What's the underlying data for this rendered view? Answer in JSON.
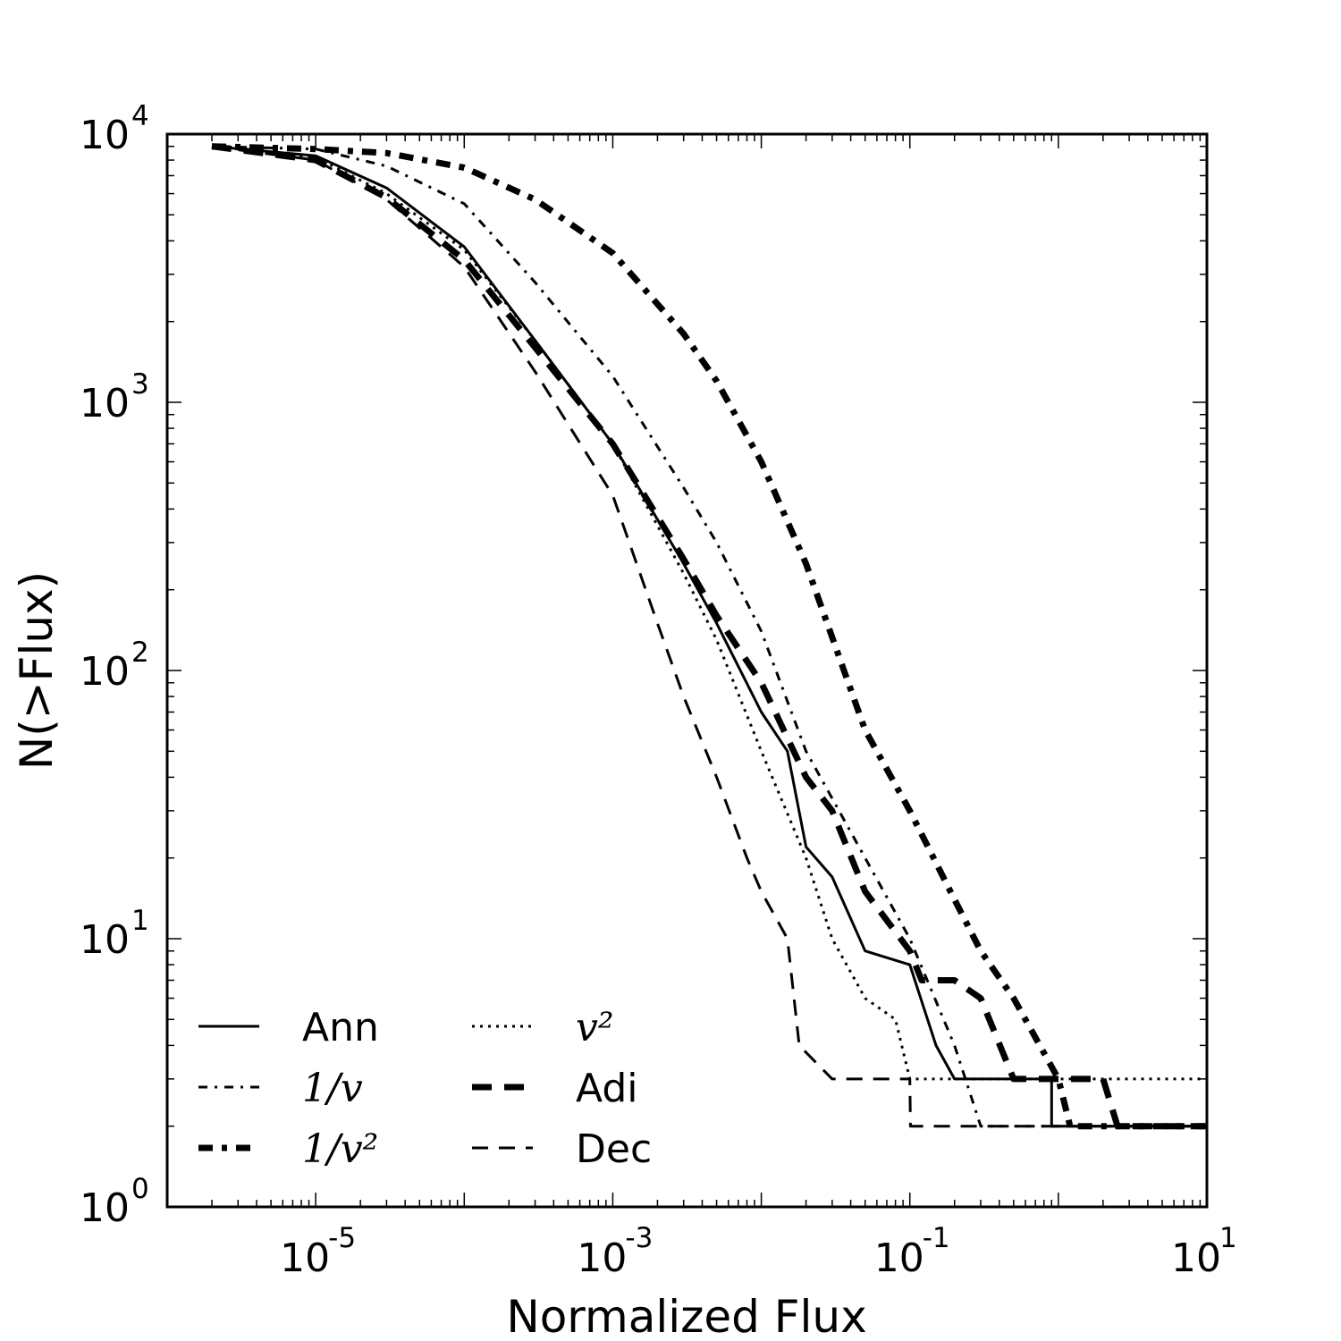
{
  "chart_data": {
    "type": "line",
    "xlabel": "Normalized Flux",
    "ylabel": "N(>Flux)",
    "xscale": "log",
    "yscale": "log",
    "xlim": [
      1e-06,
      10
    ],
    "ylim": [
      1,
      10000
    ],
    "grid": false,
    "legend_placement": "lower-left",
    "x_ticks": [
      {
        "base": "10",
        "exp": "-5",
        "value": 1e-05
      },
      {
        "base": "10",
        "exp": "-3",
        "value": 0.001
      },
      {
        "base": "10",
        "exp": "-1",
        "value": 0.1
      },
      {
        "base": "10",
        "exp": "1",
        "value": 10
      }
    ],
    "y_ticks": [
      {
        "base": "10",
        "exp": "0",
        "value": 1
      },
      {
        "base": "10",
        "exp": "1",
        "value": 10
      },
      {
        "base": "10",
        "exp": "2",
        "value": 100
      },
      {
        "base": "10",
        "exp": "3",
        "value": 1000
      },
      {
        "base": "10",
        "exp": "4",
        "value": 10000
      }
    ],
    "series": [
      {
        "name": "Ann",
        "style": "solid",
        "weight": "thin",
        "color": "#000000",
        "points": [
          [
            2e-06,
            9000
          ],
          [
            1e-05,
            8300
          ],
          [
            3e-05,
            6300
          ],
          [
            0.0001,
            3800
          ],
          [
            0.0003,
            1700
          ],
          [
            0.001,
            700
          ],
          [
            0.003,
            250
          ],
          [
            0.005,
            150
          ],
          [
            0.01,
            70
          ],
          [
            0.015,
            50
          ],
          [
            0.02,
            22
          ],
          [
            0.03,
            17
          ],
          [
            0.05,
            9
          ],
          [
            0.1,
            8
          ],
          [
            0.15,
            4
          ],
          [
            0.2,
            3
          ],
          [
            0.9,
            3
          ],
          [
            0.901,
            2
          ],
          [
            10,
            2
          ]
        ]
      },
      {
        "name": "1/v",
        "style": "dashdot",
        "weight": "thin",
        "color": "#000000",
        "points": [
          [
            2e-06,
            9000
          ],
          [
            1e-05,
            8800
          ],
          [
            3e-05,
            7600
          ],
          [
            0.0001,
            5500
          ],
          [
            0.0003,
            2800
          ],
          [
            0.001,
            1250
          ],
          [
            0.003,
            480
          ],
          [
            0.005,
            300
          ],
          [
            0.01,
            140
          ],
          [
            0.02,
            50
          ],
          [
            0.05,
            20
          ],
          [
            0.1,
            10
          ],
          [
            0.2,
            4
          ],
          [
            0.3,
            2
          ],
          [
            10,
            2
          ]
        ]
      },
      {
        "name": "1/v²",
        "style": "dashdot",
        "weight": "thick",
        "color": "#000000",
        "points": [
          [
            2e-06,
            9000
          ],
          [
            1e-05,
            8800
          ],
          [
            3e-05,
            8500
          ],
          [
            0.0001,
            7500
          ],
          [
            0.0003,
            5700
          ],
          [
            0.001,
            3600
          ],
          [
            0.003,
            1800
          ],
          [
            0.005,
            1200
          ],
          [
            0.01,
            600
          ],
          [
            0.02,
            250
          ],
          [
            0.05,
            60
          ],
          [
            0.1,
            30
          ],
          [
            0.2,
            14
          ],
          [
            0.3,
            9
          ],
          [
            0.5,
            6
          ],
          [
            1,
            3
          ],
          [
            1.2,
            2
          ],
          [
            10,
            2
          ]
        ]
      },
      {
        "name": "v²",
        "style": "dotted",
        "weight": "thin",
        "color": "#000000",
        "points": [
          [
            2e-06,
            9000
          ],
          [
            1e-05,
            8200
          ],
          [
            3e-05,
            6000
          ],
          [
            0.0001,
            3700
          ],
          [
            0.0003,
            1700
          ],
          [
            0.001,
            700
          ],
          [
            0.003,
            230
          ],
          [
            0.005,
            130
          ],
          [
            0.01,
            50
          ],
          [
            0.02,
            20
          ],
          [
            0.03,
            10
          ],
          [
            0.05,
            6
          ],
          [
            0.08,
            5
          ],
          [
            0.1,
            3
          ],
          [
            10,
            3
          ]
        ]
      },
      {
        "name": "Adi",
        "style": "dashed",
        "weight": "thick",
        "color": "#000000",
        "points": [
          [
            2e-06,
            9000
          ],
          [
            1e-05,
            8000
          ],
          [
            3e-05,
            5800
          ],
          [
            0.0001,
            3400
          ],
          [
            0.0003,
            1600
          ],
          [
            0.001,
            700
          ],
          [
            0.003,
            260
          ],
          [
            0.005,
            160
          ],
          [
            0.01,
            90
          ],
          [
            0.02,
            40
          ],
          [
            0.03,
            30
          ],
          [
            0.05,
            15
          ],
          [
            0.1,
            9
          ],
          [
            0.12,
            7
          ],
          [
            0.2,
            7
          ],
          [
            0.3,
            6
          ],
          [
            0.5,
            3
          ],
          [
            2,
            3
          ],
          [
            2.5,
            2
          ],
          [
            10,
            2
          ]
        ]
      },
      {
        "name": "Dec",
        "style": "dashed",
        "weight": "thin",
        "color": "#000000",
        "points": [
          [
            2e-06,
            9000
          ],
          [
            1e-05,
            8000
          ],
          [
            3e-05,
            5700
          ],
          [
            0.0001,
            3200
          ],
          [
            0.0003,
            1300
          ],
          [
            0.001,
            450
          ],
          [
            0.002,
            150
          ],
          [
            0.003,
            80
          ],
          [
            0.005,
            40
          ],
          [
            0.008,
            20
          ],
          [
            0.01,
            15
          ],
          [
            0.015,
            10
          ],
          [
            0.018,
            4
          ],
          [
            0.03,
            3
          ],
          [
            0.1,
            3
          ],
          [
            0.101,
            2
          ],
          [
            10,
            2
          ]
        ]
      }
    ]
  }
}
